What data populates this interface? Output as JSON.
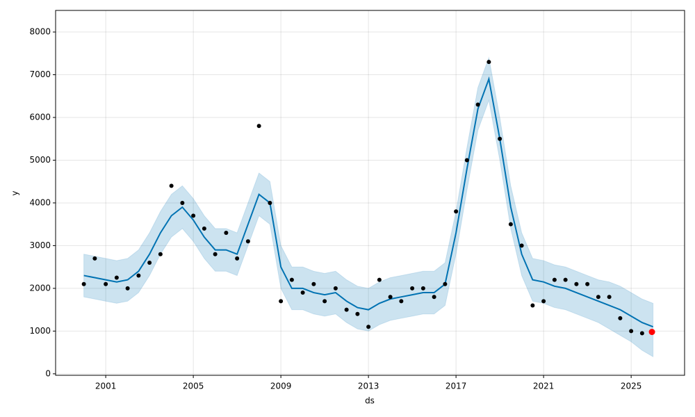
{
  "chart_data": {
    "type": "forecast",
    "xlabel": "ds",
    "ylabel": "y",
    "x": [
      2000.0,
      2000.5,
      2001.0,
      2001.5,
      2002.0,
      2002.5,
      2003.0,
      2003.5,
      2004.0,
      2004.5,
      2005.0,
      2005.5,
      2006.0,
      2006.5,
      2007.0,
      2007.5,
      2008.0,
      2008.5,
      2009.0,
      2009.5,
      2010.0,
      2010.5,
      2011.0,
      2011.5,
      2012.0,
      2012.5,
      2013.0,
      2013.5,
      2014.0,
      2014.5,
      2015.0,
      2015.5,
      2016.0,
      2016.5,
      2017.0,
      2017.5,
      2018.0,
      2018.5,
      2019.0,
      2019.5,
      2020.0,
      2020.5,
      2021.0,
      2021.5,
      2022.0,
      2022.5,
      2023.0,
      2023.5,
      2024.0,
      2024.5,
      2025.0,
      2025.5,
      2026.0
    ],
    "series": [
      {
        "marker": "dot",
        "color": "#000000",
        "values": [
          2100,
          2700,
          2100,
          2250,
          2000,
          2300,
          2600,
          2800,
          4400,
          4000,
          3700,
          3400,
          2800,
          3300,
          2700,
          3100,
          5800,
          4000,
          1700,
          2200,
          1900,
          2100,
          1700,
          2000,
          1500,
          1400,
          1100,
          2200,
          1800,
          1700,
          2000,
          2000,
          1800,
          2100,
          3800,
          5000,
          6300,
          7300,
          5500,
          3500,
          3000,
          1600,
          1700,
          2200,
          2200,
          2100,
          2100,
          1800,
          1800,
          1300,
          1000,
          950,
          null
        ]
      },
      {
        "marker": "line",
        "color": "#0072B2",
        "values": [
          2300,
          2250,
          2200,
          2150,
          2200,
          2400,
          2800,
          3300,
          3700,
          3900,
          3600,
          3200,
          2900,
          2900,
          2800,
          3500,
          4200,
          4000,
          2500,
          2000,
          2000,
          1900,
          1850,
          1900,
          1700,
          1550,
          1500,
          1650,
          1750,
          1800,
          1850,
          1900,
          1900,
          2100,
          3300,
          4800,
          6200,
          6900,
          5500,
          3900,
          2800,
          2200,
          2150,
          2050,
          2000,
          1900,
          1800,
          1700,
          1600,
          1500,
          1350,
          1200,
          1100
        ]
      }
    ],
    "interval": {
      "color": "#0072B2",
      "lower": [
        1800,
        1750,
        1700,
        1650,
        1700,
        1900,
        2300,
        2800,
        3200,
        3400,
        3100,
        2700,
        2400,
        2400,
        2300,
        3000,
        3700,
        3500,
        2000,
        1500,
        1500,
        1400,
        1350,
        1400,
        1200,
        1050,
        1000,
        1150,
        1250,
        1300,
        1350,
        1400,
        1400,
        1600,
        2800,
        4300,
        5700,
        6400,
        5000,
        3400,
        2300,
        1700,
        1650,
        1550,
        1500,
        1400,
        1300,
        1200,
        1050,
        900,
        750,
        550,
        400
      ],
      "upper": [
        2800,
        2750,
        2700,
        2650,
        2700,
        2900,
        3300,
        3800,
        4200,
        4400,
        4100,
        3700,
        3400,
        3400,
        3300,
        4000,
        4700,
        4500,
        3000,
        2500,
        2500,
        2400,
        2350,
        2400,
        2200,
        2050,
        2000,
        2150,
        2250,
        2300,
        2350,
        2400,
        2400,
        2600,
        3800,
        5300,
        6700,
        7400,
        6000,
        4400,
        3300,
        2700,
        2650,
        2550,
        2500,
        2400,
        2300,
        2200,
        2150,
        2050,
        1900,
        1750,
        1650
      ]
    },
    "highlight": {
      "x": 2025.95,
      "value": 980,
      "color": "#ff0000"
    },
    "xlim": [
      1998.71,
      2027.44
    ],
    "xticks": [
      2001,
      2005,
      2009,
      2013,
      2017,
      2021,
      2025
    ],
    "ylim": [
      -35,
      8505
    ],
    "yticks": [
      0,
      1000,
      2000,
      3000,
      4000,
      5000,
      6000,
      7000,
      8000
    ],
    "grid": true
  }
}
